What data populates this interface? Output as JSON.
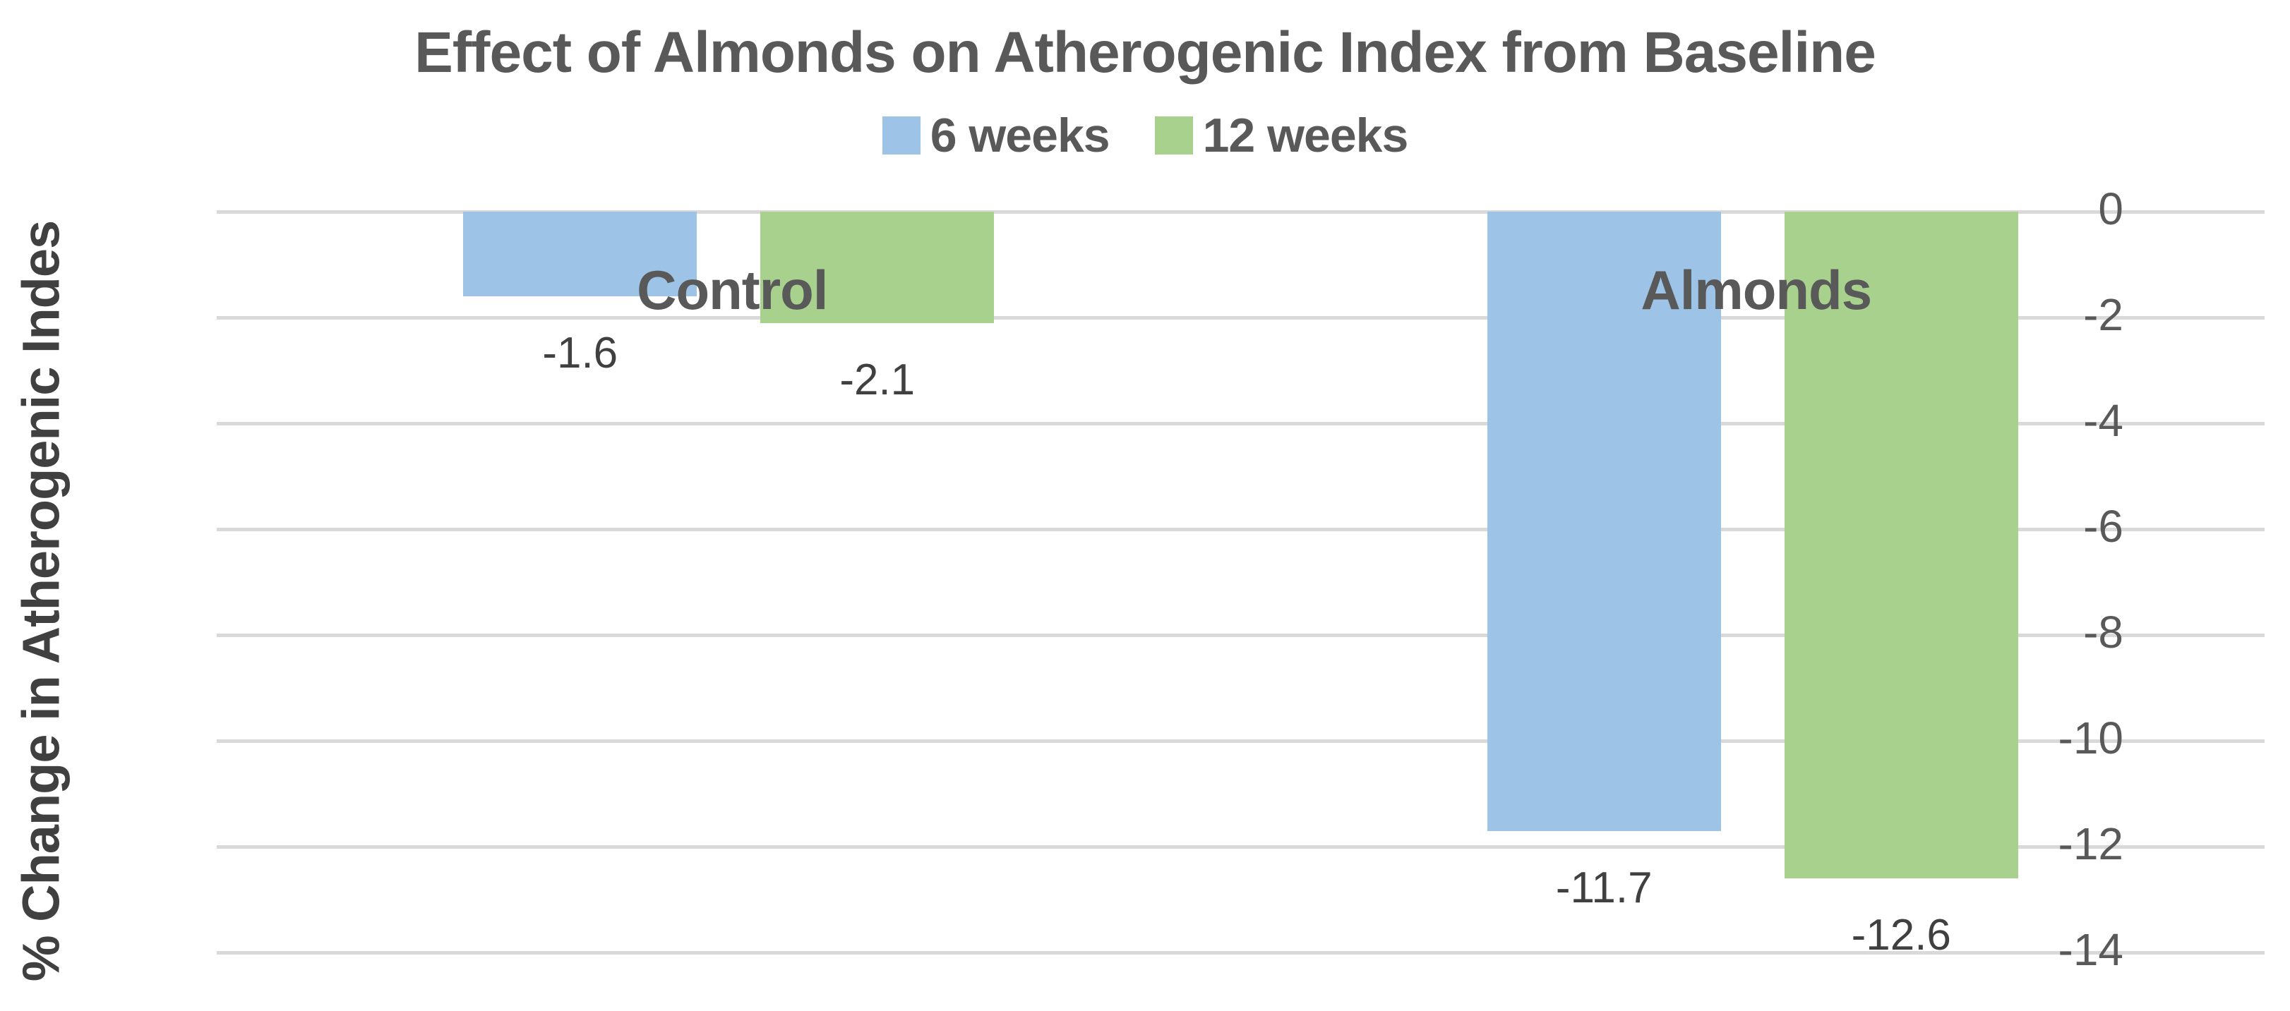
{
  "chart_data": {
    "type": "bar",
    "title": "Effect of Almonds on Atherogenic Index from Baseline",
    "ylabel": "% Change in Atherogenic Indes",
    "xlabel": "",
    "categories": [
      "Control",
      "Almonds"
    ],
    "series": [
      {
        "name": "6 weeks",
        "color": "#9DC3E6",
        "values": [
          -1.6,
          -11.7
        ]
      },
      {
        "name": "12 weeks",
        "color": "#A9D18E",
        "values": [
          -2.1,
          -12.6
        ]
      }
    ],
    "ylim": [
      -14,
      0
    ],
    "yticks": [
      0,
      -2,
      -4,
      -6,
      -8,
      -10,
      -12,
      -14
    ],
    "grid": true,
    "gridline_color": "#D9D9D9",
    "legend_position": "top",
    "data_labels": true,
    "title_color": "#595959",
    "tick_label_color": "#595959",
    "value_label_color": "#404040"
  }
}
